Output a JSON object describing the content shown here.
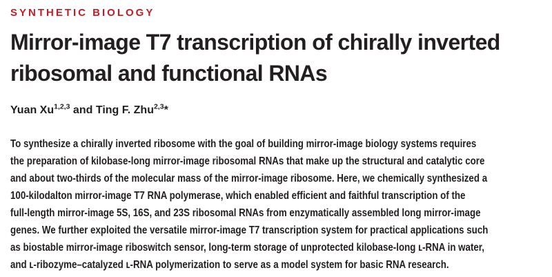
{
  "kicker": "SYNTHETIC BIOLOGY",
  "title": {
    "lines": [
      "Mirror-image T7 transcription of chirally inverted",
      "ribosomal and functional RNAs"
    ]
  },
  "authors": {
    "name1": "Yuan Xu",
    "sup1": "1,2,3",
    "connector": " and ",
    "name2": "Ting F. Zhu",
    "sup2": "2,3",
    "star": "*"
  },
  "abstract": {
    "lines": [
      "To synthesize a chirally inverted ribosome with the goal of building mirror-image biology systems requires",
      "the preparation of kilobase-long mirror-image ribosomal RNAs that make up the structural and catalytic core",
      "and about two-thirds of the molecular mass of the mirror-image ribosome. Here, we chemically synthesized a",
      "100-kilodalton mirror-image T7 RNA polymerase, which enabled efficient and faithful transcription of the",
      "full-length mirror-image 5S, 16S, and 23S ribosomal RNAs from enzymatically assembled long mirror-image",
      "genes. We further exploited the versatile mirror-image T7 transcription system for practical applications such",
      "as biostable mirror-image riboswitch sensor, long-term storage of unprotected kilobase-long ʟ-RNA in water,",
      "and ʟ-ribozyme–catalyzed ʟ-RNA polymerization to serve as a model system for basic RNA research."
    ]
  },
  "colors": {
    "kicker_red": "#c11d26",
    "text": "#231f20"
  }
}
